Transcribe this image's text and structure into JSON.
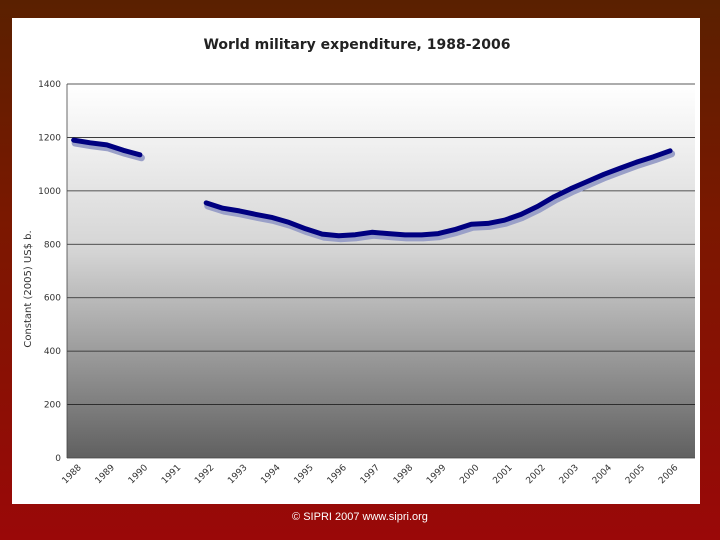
{
  "footer": {
    "credit": "©  SIPRI 2007  www.sipri.org"
  },
  "colors": {
    "line": "#000080",
    "shadow": "#9aa0c8",
    "frame_top": "#5a2000",
    "frame_bottom": "#9a0808"
  },
  "chart_data": {
    "type": "line",
    "title": "World military expenditure, 1988-2006",
    "xlabel": "",
    "ylabel": "Constant (2005) US$ b.",
    "ylim": [
      0,
      1400
    ],
    "yticks": [
      0,
      200,
      400,
      600,
      800,
      1000,
      1200,
      1400
    ],
    "ytick_labels": [
      "0",
      "200",
      "400",
      "600",
      "800",
      "1000",
      "1200",
      "1400"
    ],
    "xticks": [
      1988,
      1989,
      1990,
      1991,
      1992,
      1993,
      1994,
      1995,
      1996,
      1997,
      1998,
      1999,
      2000,
      2001,
      2002,
      2003,
      2004,
      2005,
      2006
    ],
    "xtick_labels": [
      "1988",
      "1989",
      "1990",
      "1991",
      "1992",
      "1993",
      "1994",
      "1995",
      "1996",
      "1997",
      "1998",
      "1999",
      "2000",
      "2001",
      "2002",
      "2003",
      "2004",
      "2005",
      "2006"
    ],
    "grid": true,
    "background": "vertical gradient white to dark grey",
    "series": [
      {
        "segments": [
          [
            [
              1988,
              1190
            ],
            [
              1988.5,
              1180
            ],
            [
              1989,
              1172
            ],
            [
              1989.5,
              1152
            ],
            [
              1990,
              1135
            ]
          ],
          [
            [
              1992,
              955
            ],
            [
              1992.5,
              935
            ],
            [
              1993,
              925
            ],
            [
              1993.5,
              912
            ],
            [
              1994,
              900
            ],
            [
              1994.5,
              882
            ],
            [
              1995,
              858
            ],
            [
              1995.5,
              838
            ],
            [
              1996,
              832
            ],
            [
              1996.5,
              836
            ],
            [
              1997,
              845
            ],
            [
              1997.5,
              840
            ],
            [
              1998,
              835
            ],
            [
              1998.5,
              835
            ],
            [
              1999,
              840
            ],
            [
              1999.5,
              855
            ],
            [
              2000,
              875
            ],
            [
              2000.5,
              878
            ],
            [
              2001,
              890
            ],
            [
              2001.5,
              912
            ],
            [
              2002,
              942
            ],
            [
              2002.5,
              978
            ],
            [
              2003,
              1008
            ],
            [
              2003.5,
              1035
            ],
            [
              2004,
              1062
            ],
            [
              2004.5,
              1085
            ],
            [
              2005,
              1108
            ],
            [
              2005.5,
              1128
            ],
            [
              2006,
              1150
            ]
          ]
        ]
      }
    ]
  }
}
